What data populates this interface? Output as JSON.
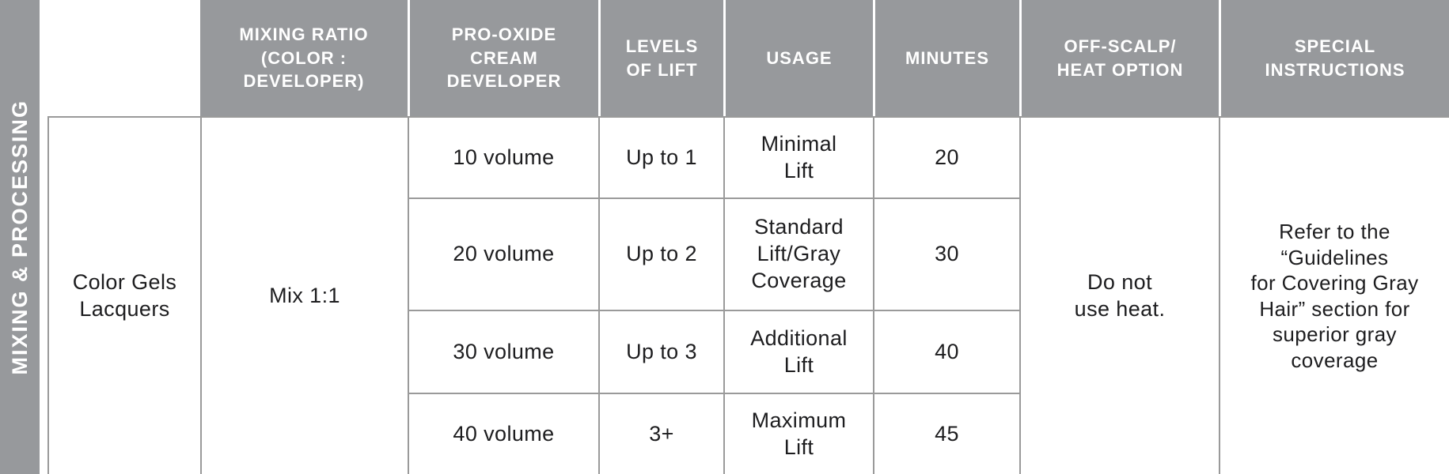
{
  "sidebar": {
    "label": "MIXING & PROCESSING"
  },
  "table": {
    "headers": [
      "",
      "MIXING RATIO\n(COLOR :\nDEVELOPER)",
      "PRO-OXIDE\nCREAM\nDEVELOPER",
      "LEVELS\nOF LIFT",
      "USAGE",
      "MINUTES",
      "OFF-SCALP/\nHEAT OPTION",
      "SPECIAL\nINSTRUCTIONS"
    ],
    "product": "Color Gels\nLacquers",
    "mixing_ratio": "Mix 1:1",
    "rows": [
      {
        "developer": "10 volume",
        "levels_of_lift": "Up to 1",
        "usage": "Minimal\nLift",
        "minutes": "20"
      },
      {
        "developer": "20 volume",
        "levels_of_lift": "Up to 2",
        "usage": "Standard\nLift/Gray\nCoverage",
        "minutes": "30"
      },
      {
        "developer": "30 volume",
        "levels_of_lift": "Up to 3",
        "usage": "Additional\nLift",
        "minutes": "40"
      },
      {
        "developer": "40 volume",
        "levels_of_lift": "3+",
        "usage": "Maximum\nLift",
        "minutes": "45"
      }
    ],
    "off_scalp_heat_option": "Do not\nuse heat.",
    "special_instructions": "Refer to the\n“Guidelines\nfor Covering Gray\nHair” section for\nsuperior gray\ncoverage"
  },
  "colors": {
    "header_bg": "#97999c",
    "sidebar_bg": "#97999c",
    "border": "#9a9a9a",
    "header_text": "#ffffff",
    "body_text": "#1d1d1f"
  }
}
